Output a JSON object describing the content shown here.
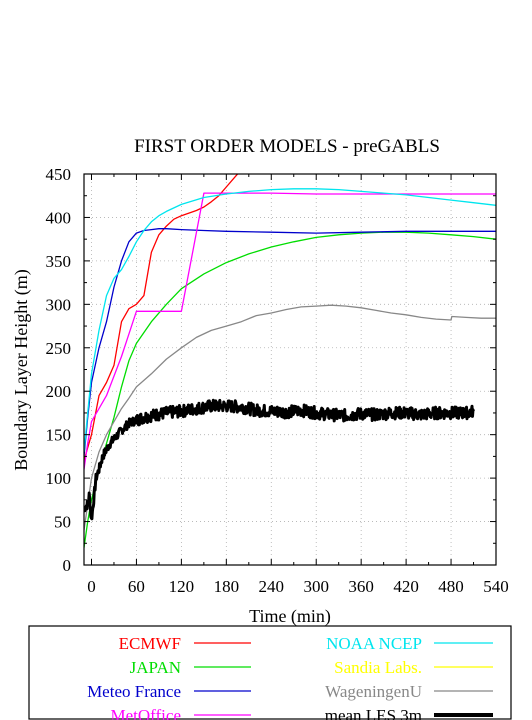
{
  "chart_data": {
    "type": "line",
    "title": "FIRST ORDER MODELS  - preGABLS",
    "xlabel": "Time (min)",
    "ylabel": "Boundary Layer Height (m)",
    "xlim": [
      -10,
      540
    ],
    "ylim": [
      0,
      450
    ],
    "xticks": [
      0,
      60,
      120,
      180,
      240,
      300,
      360,
      420,
      480,
      540
    ],
    "yticks": [
      0,
      50,
      100,
      150,
      200,
      250,
      300,
      350,
      400,
      450
    ],
    "grid": true,
    "legend_position": "bottom",
    "series": [
      {
        "name": "ECMWF",
        "color": "#ff0000",
        "width": 1.3,
        "x": [
          -10,
          -5,
          0,
          10,
          20,
          30,
          40,
          50,
          60,
          70,
          80,
          90,
          100,
          110,
          120,
          130,
          140,
          150,
          160,
          170,
          180,
          190,
          200
        ],
        "y": [
          120,
          135,
          150,
          195,
          210,
          230,
          280,
          295,
          300,
          310,
          360,
          380,
          390,
          398,
          402,
          405,
          408,
          412,
          418,
          425,
          435,
          445,
          455
        ]
      },
      {
        "name": "JAPAN",
        "color": "#00dd00",
        "width": 1.3,
        "x": [
          -10,
          -5,
          0,
          10,
          20,
          30,
          40,
          50,
          60,
          80,
          100,
          120,
          150,
          180,
          210,
          240,
          270,
          300,
          330,
          360,
          390,
          420,
          450,
          480,
          510,
          540
        ],
        "y": [
          20,
          50,
          75,
          110,
          140,
          170,
          205,
          235,
          255,
          280,
          300,
          318,
          335,
          348,
          358,
          366,
          372,
          377,
          380,
          382,
          383,
          383,
          382,
          380,
          378,
          375
        ]
      },
      {
        "name": "Meteo France",
        "color": "#0000cc",
        "width": 1.3,
        "x": [
          -10,
          -5,
          0,
          10,
          20,
          30,
          40,
          50,
          60,
          70,
          80,
          90,
          100,
          120,
          150,
          180,
          240,
          300,
          360,
          420,
          480,
          540
        ],
        "y": [
          125,
          170,
          210,
          250,
          280,
          320,
          350,
          372,
          382,
          385,
          386,
          387,
          387,
          386,
          385,
          384,
          383,
          382,
          383,
          384,
          384,
          384
        ]
      },
      {
        "name": "MetOffice",
        "color": "#ff00ff",
        "width": 1.3,
        "x": [
          -10,
          -5,
          0,
          20,
          40,
          60,
          119,
          120,
          150,
          151,
          180,
          240,
          300,
          360,
          420,
          480,
          540
        ],
        "y": [
          110,
          140,
          165,
          195,
          240,
          292,
          292,
          292,
          428,
          428,
          428,
          428,
          427,
          427,
          427,
          427,
          427
        ]
      },
      {
        "name": "NOAA NCEP",
        "color": "#00e5ee",
        "width": 1.3,
        "x": [
          -10,
          -5,
          0,
          10,
          20,
          30,
          40,
          50,
          60,
          70,
          80,
          90,
          100,
          120,
          150,
          180,
          210,
          240,
          270,
          300,
          330,
          360,
          390,
          420,
          450,
          480,
          510,
          540
        ],
        "y": [
          130,
          175,
          220,
          270,
          310,
          330,
          340,
          355,
          372,
          385,
          395,
          402,
          407,
          415,
          423,
          427,
          430,
          432,
          433,
          433,
          432,
          430,
          428,
          426,
          423,
          420,
          417,
          414
        ]
      },
      {
        "name": "Sandia Labs.",
        "color": "#ffff00",
        "width": 1.3,
        "x": [],
        "y": []
      },
      {
        "name": "WageningenU",
        "color": "#888888",
        "width": 1.3,
        "x": [
          -10,
          -5,
          0,
          10,
          20,
          30,
          40,
          50,
          60,
          80,
          100,
          120,
          140,
          160,
          180,
          200,
          220,
          240,
          260,
          280,
          300,
          320,
          340,
          360,
          380,
          400,
          420,
          440,
          460,
          480,
          481,
          500,
          520,
          540
        ],
        "y": [
          40,
          70,
          100,
          130,
          150,
          165,
          180,
          192,
          205,
          220,
          237,
          250,
          262,
          270,
          275,
          280,
          287,
          290,
          294,
          297,
          298,
          299,
          298,
          296,
          293,
          290,
          288,
          285,
          283,
          282,
          286,
          285,
          284,
          284
        ]
      },
      {
        "name": "mean LES 3m",
        "color": "#000000",
        "width": 4.5,
        "x": [
          -10,
          -5,
          -3,
          0,
          3,
          6,
          10,
          15,
          20,
          25,
          30,
          40,
          50,
          60,
          70,
          80,
          100,
          120,
          140,
          160,
          180,
          200,
          220,
          240,
          260,
          280,
          300,
          320,
          340,
          360,
          380,
          400,
          420,
          440,
          460,
          480,
          500,
          510
        ],
        "y": [
          65,
          70,
          80,
          52,
          75,
          100,
          110,
          125,
          133,
          140,
          145,
          155,
          163,
          167,
          170,
          172,
          175,
          177,
          180,
          183,
          183,
          182,
          178,
          177,
          176,
          178,
          175,
          173,
          172,
          174,
          173,
          175,
          175,
          173,
          175,
          175,
          175,
          177
        ]
      }
    ]
  }
}
